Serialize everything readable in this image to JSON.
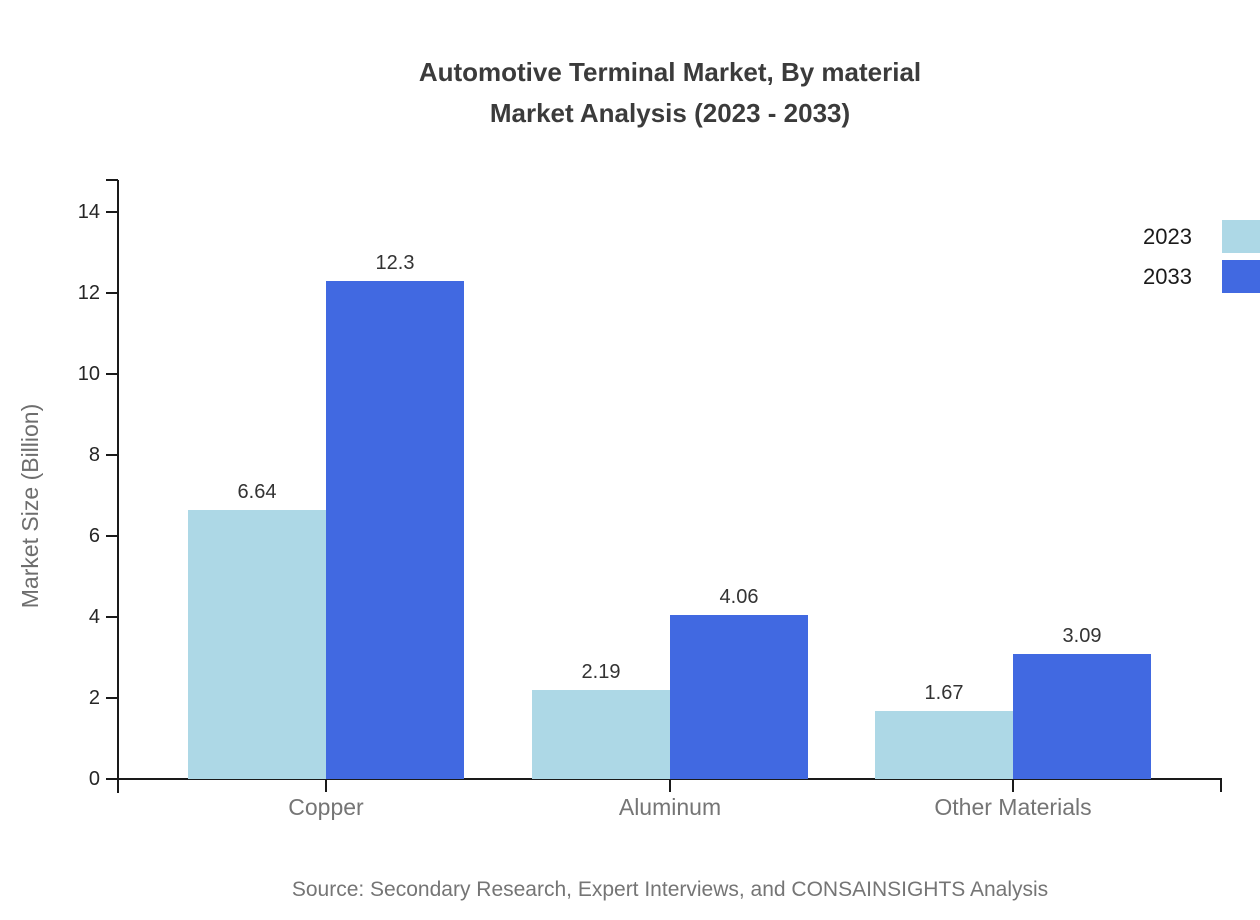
{
  "title": {
    "line1": "Automotive Terminal Market, By material",
    "line2": "Market Analysis (2023 - 2033)"
  },
  "source": "Source: Secondary Research, Expert Interviews, and CONSAINSIGHTS Analysis",
  "chart_data": {
    "type": "bar",
    "title": "Automotive Terminal Market, By material Market Analysis (2023 - 2033)",
    "categories": [
      "Copper",
      "Aluminum",
      "Other Materials"
    ],
    "series": [
      {
        "name": "2023",
        "color": "#add8e6",
        "values": [
          6.64,
          2.19,
          1.67
        ],
        "value_labels": [
          "6.64",
          "2.19",
          "1.67"
        ]
      },
      {
        "name": "2033",
        "color": "#4169e1",
        "values": [
          12.3,
          4.06,
          3.09
        ],
        "value_labels": [
          "12.3",
          "4.06",
          "3.09"
        ]
      }
    ],
    "xlabel": "",
    "ylabel": "Market Size (Billion)",
    "ylim": [
      0,
      14.8
    ],
    "yticks": [
      0,
      2,
      4,
      6,
      8,
      10,
      12,
      14
    ],
    "grid": false,
    "legend_position": "top-right"
  }
}
